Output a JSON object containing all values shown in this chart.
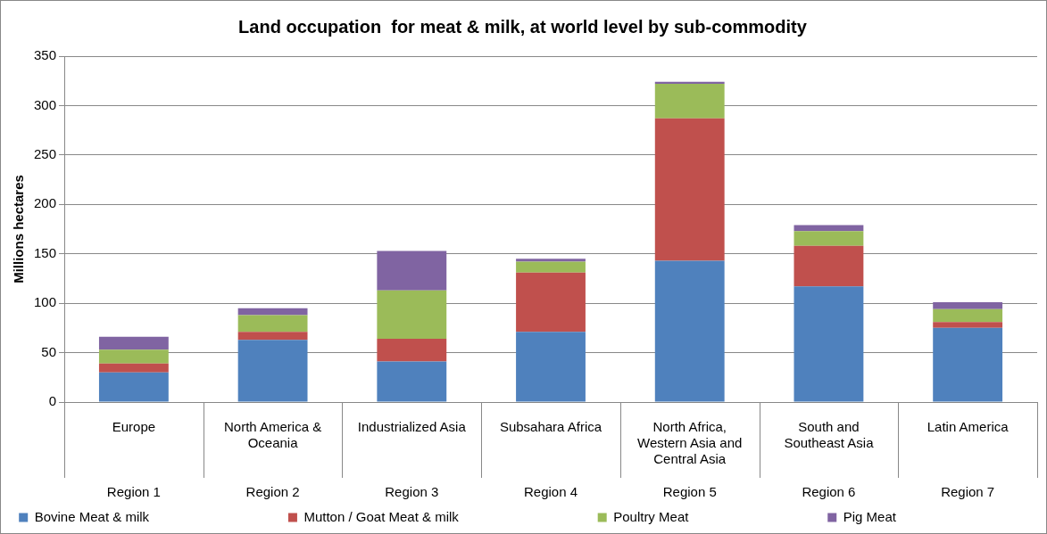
{
  "chart_data": {
    "type": "bar",
    "title": "Land occupation  for meat & milk, at world level by sub-commodity",
    "ylabel": "Millions hectares",
    "categories": [
      "Europe",
      "North America & Oceania",
      "Industrialized Asia",
      "Subsahara Africa",
      "North Africa, Western Asia and Central Asia",
      "South and Southeast Asia",
      "Latin America"
    ],
    "annotations": [
      "Region 1",
      "Region 2",
      "Region 3",
      "Region 4",
      "Region 5",
      "Region 6",
      "Region 7"
    ],
    "stacked": true,
    "series": [
      {
        "name": "Bovine Meat & milk",
        "color": "#4f81bd",
        "values": [
          30,
          63,
          41,
          71,
          143,
          117,
          75
        ]
      },
      {
        "name": "Mutton / Goat Meat & milk",
        "color": "#c0504d",
        "values": [
          9,
          8,
          23,
          60,
          144,
          41,
          6
        ]
      },
      {
        "name": "Poultry Meat",
        "color": "#9bbb59",
        "values": [
          14,
          17,
          49,
          11,
          35,
          15,
          13
        ]
      },
      {
        "name": "Pig Meat",
        "color": "#8064a2",
        "values": [
          13,
          7,
          40,
          3,
          2,
          6,
          7
        ]
      }
    ],
    "ylim": [
      0,
      350
    ],
    "yticks": [
      0,
      50,
      100,
      150,
      200,
      250,
      300,
      350
    ],
    "grid": "y",
    "legend": "bottom"
  }
}
